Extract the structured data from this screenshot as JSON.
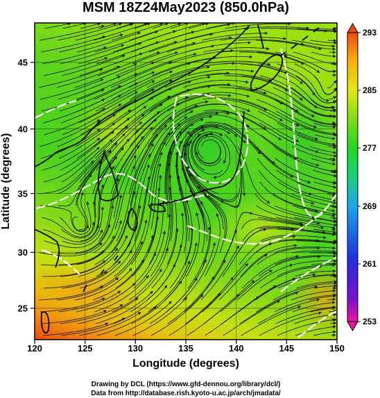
{
  "title": "MSM 18Z24May2023 (850.0hPa)",
  "x_axis": {
    "label": "Longitude (degrees)",
    "ticks": [
      "120",
      "125",
      "130",
      "135",
      "140",
      "145",
      "150"
    ],
    "tick_values": [
      120,
      125,
      130,
      135,
      140,
      145,
      150
    ],
    "range": [
      120,
      150
    ]
  },
  "y_axis": {
    "label": "Latitude  (degrees)",
    "ticks": [
      "25",
      "30",
      "35",
      "40",
      "45"
    ],
    "tick_values": [
      25,
      30,
      35,
      40,
      45
    ],
    "range": [
      22.4,
      47.6
    ]
  },
  "colorbar": {
    "ticks": [
      "293",
      "285",
      "277",
      "269",
      "261",
      "253"
    ],
    "tick_values": [
      293,
      285,
      277,
      269,
      261,
      253
    ],
    "range": [
      253,
      293
    ],
    "colors": [
      "#e8189a",
      "#7a10d0",
      "#2030e0",
      "#1aa6ee",
      "#18d27a",
      "#22d822",
      "#8fe012",
      "#e2e812",
      "#f8b208",
      "#f04a10"
    ]
  },
  "credits": {
    "line1": "Drawing by DCL (https://www.gfd-dennou.org/library/dcl/)",
    "line2": "Data from http://database.rish.kyoto-u.ac.jp/arch/jmadata/"
  }
}
